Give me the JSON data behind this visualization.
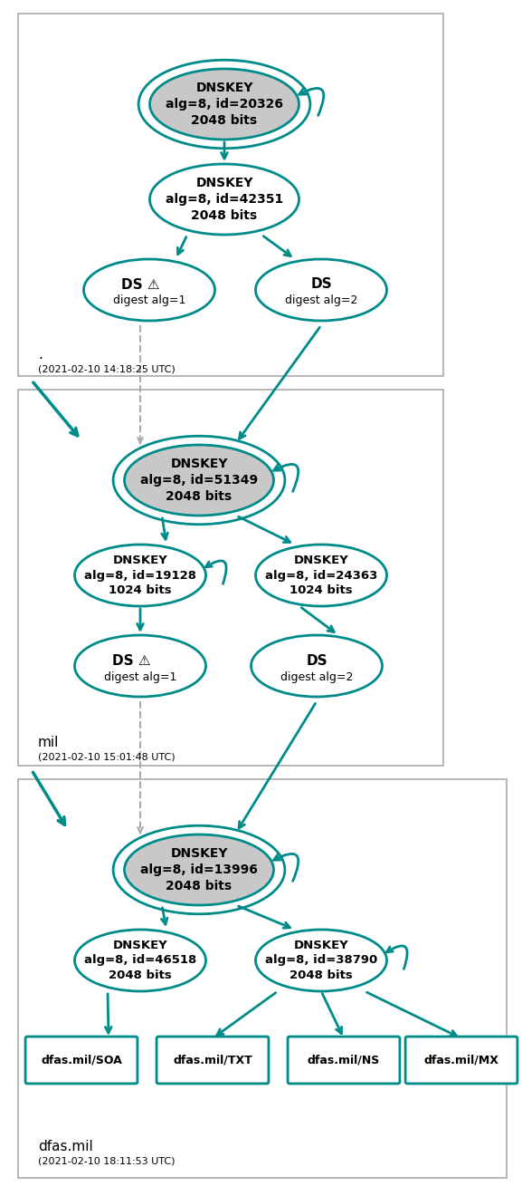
{
  "teal": "#008B8B",
  "gray_fill": "#C8C8C8",
  "white_fill": "#FFFFFF",
  "bg": "#FFFFFF",
  "gray_arrow": "#AAAAAA",
  "section1_label": ".",
  "section1_time": "(2021-02-10 14:18:25 UTC)",
  "section2_label": "mil",
  "section2_time": "(2021-02-10 15:01:48 UTC)",
  "section3_label": "dfas.mil",
  "section3_time": "(2021-02-10 18:11:53 UTC)",
  "figw": 5.77,
  "figh": 13.2,
  "dpi": 100
}
